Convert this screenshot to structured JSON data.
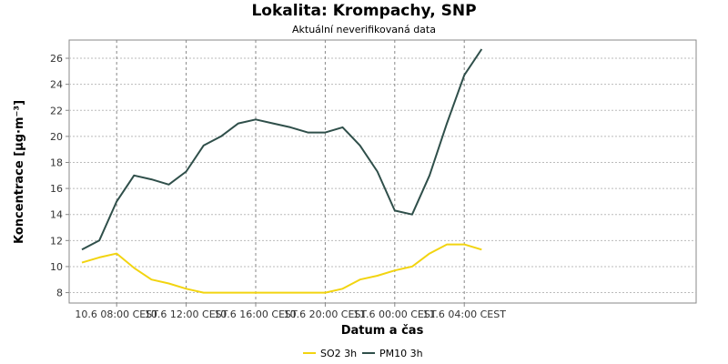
{
  "chart_data": {
    "type": "line",
    "title": "Lokalita: Krompachy, SNP",
    "subtitle": "Aktuální neverifikovaná data",
    "xlabel": "Datum a čas",
    "ylabel": "Koncentrace [µg·m⁻³]",
    "x": [
      "10.6 06:00",
      "10.6 07:00",
      "10.6 08:00",
      "10.6 09:00",
      "10.6 10:00",
      "10.6 11:00",
      "10.6 12:00",
      "10.6 13:00",
      "10.6 14:00",
      "10.6 15:00",
      "10.6 16:00",
      "10.6 17:00",
      "10.6 18:00",
      "10.6 19:00",
      "10.6 20:00",
      "10.6 21:00",
      "10.6 22:00",
      "10.6 23:00",
      "11.6 00:00",
      "11.6 01:00",
      "11.6 02:00",
      "11.6 03:00",
      "11.6 04:00",
      "11.6 05:00"
    ],
    "x_ticks": [
      "10.6 08:00 CEST",
      "10.6 12:00 CEST",
      "10.6 16:00 CEST",
      "10.6 20:00 CEST",
      "11.6 00:00 CEST",
      "11.6 04:00 CEST"
    ],
    "y_ticks": [
      8,
      10,
      12,
      14,
      16,
      18,
      20,
      22,
      24,
      26
    ],
    "ylim": [
      7.2,
      27.4
    ],
    "grid": true,
    "legend_position": "bottom",
    "series": [
      {
        "name": "SO2 3h",
        "color": "#f2d410",
        "values": [
          10.3,
          10.7,
          11.0,
          9.9,
          9.0,
          8.7,
          8.3,
          8.0,
          8.0,
          8.0,
          8.0,
          8.0,
          8.0,
          8.0,
          8.0,
          8.3,
          9.0,
          9.3,
          9.7,
          10.0,
          11.0,
          11.7,
          11.7,
          11.3
        ]
      },
      {
        "name": "PM10 3h",
        "color": "#2f4f4a",
        "values": [
          11.3,
          12.0,
          15.0,
          17.0,
          16.7,
          16.3,
          17.3,
          19.3,
          20.0,
          21.0,
          21.3,
          21.0,
          20.7,
          20.3,
          20.3,
          20.7,
          19.3,
          17.3,
          14.3,
          14.0,
          17.0,
          21.0,
          24.7,
          26.7
        ]
      }
    ]
  }
}
